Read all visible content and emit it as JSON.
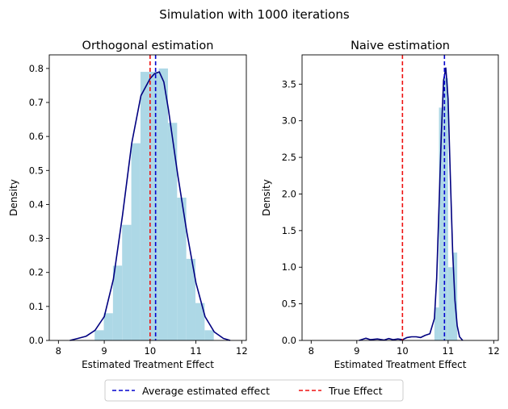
{
  "suptitle": "Simulation with 1000 iterations",
  "legend": {
    "placement": "bottom-center",
    "entries": [
      {
        "label": "Average estimated effect",
        "color": "#0000cd",
        "style": "dashed"
      },
      {
        "label": "True Effect",
        "color": "#ee1111",
        "style": "dashed"
      }
    ]
  },
  "colors": {
    "hist": "#add8e6",
    "kde": "#000080",
    "avg_line": "#0000cd",
    "true_line": "#ee1111"
  },
  "chart_data": [
    {
      "type": "histogram",
      "title": "Orthogonal estimation",
      "xlabel": "Estimated Treatment Effect",
      "ylabel": "Density",
      "xlim": [
        7.8,
        12.1
      ],
      "ylim": [
        0,
        0.84
      ],
      "xticks": [
        8,
        9,
        10,
        11,
        12
      ],
      "yticks": [
        0.0,
        0.1,
        0.2,
        0.3,
        0.4,
        0.5,
        0.6,
        0.7,
        0.8
      ],
      "ytick_labels": [
        "0.0",
        "0.1",
        "0.2",
        "0.3",
        "0.4",
        "0.5",
        "0.6",
        "0.7",
        "0.8"
      ],
      "grid": false,
      "bins": [
        {
          "x0": 8.79,
          "x1": 8.99,
          "h": 0.03
        },
        {
          "x0": 8.99,
          "x1": 9.19,
          "h": 0.08
        },
        {
          "x0": 9.19,
          "x1": 9.39,
          "h": 0.22
        },
        {
          "x0": 9.39,
          "x1": 9.59,
          "h": 0.34
        },
        {
          "x0": 9.59,
          "x1": 9.79,
          "h": 0.58
        },
        {
          "x0": 9.79,
          "x1": 9.99,
          "h": 0.79
        },
        {
          "x0": 9.99,
          "x1": 10.19,
          "h": 0.79
        },
        {
          "x0": 10.19,
          "x1": 10.39,
          "h": 0.8
        },
        {
          "x0": 10.39,
          "x1": 10.59,
          "h": 0.64
        },
        {
          "x0": 10.59,
          "x1": 10.79,
          "h": 0.42
        },
        {
          "x0": 10.79,
          "x1": 10.99,
          "h": 0.24
        },
        {
          "x0": 10.99,
          "x1": 11.19,
          "h": 0.11
        },
        {
          "x0": 11.19,
          "x1": 11.39,
          "h": 0.03
        }
      ],
      "kde": {
        "x": [
          8.25,
          8.4,
          8.6,
          8.8,
          9.0,
          9.2,
          9.4,
          9.6,
          9.8,
          10.0,
          10.1,
          10.2,
          10.3,
          10.4,
          10.6,
          10.8,
          11.0,
          11.2,
          11.4,
          11.6,
          11.75
        ],
        "y": [
          0.0,
          0.005,
          0.012,
          0.03,
          0.07,
          0.18,
          0.37,
          0.58,
          0.72,
          0.77,
          0.785,
          0.79,
          0.76,
          0.68,
          0.49,
          0.32,
          0.17,
          0.07,
          0.025,
          0.006,
          0.0
        ]
      },
      "avg_effect": 10.12,
      "true_effect": 10.0
    },
    {
      "type": "histogram",
      "title": "Naive estimation",
      "xlabel": "Estimated Treatment Effect",
      "ylabel": "Density",
      "xlim": [
        7.8,
        12.1
      ],
      "ylim": [
        0,
        3.9
      ],
      "xticks": [
        8,
        9,
        10,
        11,
        12
      ],
      "yticks": [
        0.0,
        0.5,
        1.0,
        1.5,
        2.0,
        2.5,
        3.0,
        3.5
      ],
      "ytick_labels": [
        "0.0",
        "0.5",
        "1.0",
        "1.5",
        "2.0",
        "2.5",
        "3.0",
        "3.5"
      ],
      "grid": false,
      "bins": [
        {
          "x0": 10.7,
          "x1": 10.8,
          "h": 0.45
        },
        {
          "x0": 10.8,
          "x1": 10.9,
          "h": 3.18
        },
        {
          "x0": 10.9,
          "x1": 11.0,
          "h": 3.58
        },
        {
          "x0": 11.0,
          "x1": 11.1,
          "h": 1.0
        },
        {
          "x0": 11.1,
          "x1": 11.2,
          "h": 1.2
        }
      ],
      "kde": {
        "x": [
          9.05,
          9.2,
          9.3,
          9.45,
          9.6,
          9.7,
          9.8,
          9.9,
          10.0,
          10.1,
          10.2,
          10.3,
          10.4,
          10.5,
          10.6,
          10.7,
          10.75,
          10.8,
          10.85,
          10.9,
          10.95,
          11.0,
          11.05,
          11.1,
          11.15,
          11.2,
          11.25,
          11.32
        ],
        "y": [
          0.0,
          0.03,
          0.01,
          0.02,
          0.005,
          0.025,
          0.01,
          0.02,
          0.01,
          0.04,
          0.05,
          0.05,
          0.04,
          0.07,
          0.09,
          0.3,
          0.85,
          1.8,
          2.8,
          3.55,
          3.72,
          3.3,
          2.2,
          1.2,
          0.55,
          0.2,
          0.05,
          0.0
        ]
      },
      "avg_effect": 10.92,
      "true_effect": 10.0
    }
  ]
}
